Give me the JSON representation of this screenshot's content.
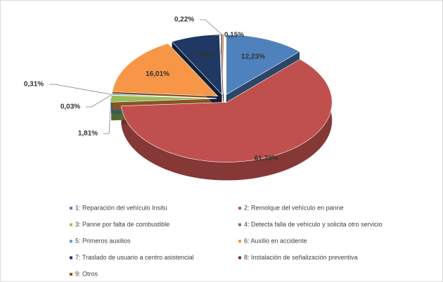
{
  "chart_data": {
    "type": "pie",
    "categories": [
      "1: Reparación del vehículo Insitu",
      "2: Remolque del vehículo en panne",
      "3: Panne por falta de combustible",
      "4: Detecta falla de vehículo y solicita otro servicio",
      "5: Primeros auxilios",
      "6: Auxilio en accidente",
      "7: Traslado de usuario a centro asistencial",
      "8: Instalación de señalización preventiva",
      "9: Otros"
    ],
    "values": [
      12.23,
      61.78,
      1.81,
      0.03,
      0.31,
      16.01,
      7.45,
      0.22,
      0.15
    ],
    "value_labels": [
      "12,23%",
      "61,78%",
      "1,81%",
      "0,03%",
      "0,31%",
      "16,01%",
      "7,45%",
      "0,22%",
      "0,15%"
    ],
    "colors": [
      "#4f81bd",
      "#c0504d",
      "#9bbb59",
      "#8064a2",
      "#4bacc6",
      "#f79646",
      "#1f3864",
      "#7b2c2a",
      "#7f6000"
    ],
    "legend": "bottom"
  }
}
